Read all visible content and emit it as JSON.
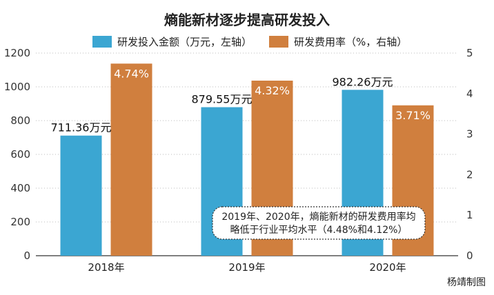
{
  "chart_data": {
    "type": "bar",
    "title": "熵能新材逐步提高研发投入",
    "categories": [
      "2018年",
      "2019年",
      "2020年"
    ],
    "series": [
      {
        "name": "研发投入金额（万元，左轴）",
        "axis": "left",
        "color": "#3ba6d2",
        "values": [
          711.36,
          879.55,
          982.26
        ],
        "labels": [
          "711.36万元",
          "879.55万元",
          "982.26万元"
        ]
      },
      {
        "name": "研发费用率（%，右轴）",
        "axis": "right",
        "color": "#d07f3e",
        "values": [
          4.74,
          4.32,
          3.71
        ],
        "labels": [
          "4.74%",
          "4.32%",
          "3.71%"
        ]
      }
    ],
    "y_left": {
      "min": 0,
      "max": 1200,
      "ticks": [
        "0",
        "200",
        "400",
        "600",
        "800",
        "1000",
        "1200"
      ]
    },
    "y_right": {
      "min": 0,
      "max": 5,
      "ticks": [
        "0",
        "1",
        "2",
        "3",
        "4",
        "5"
      ]
    },
    "grid": true,
    "legend_position": "top",
    "annotation": [
      "2019年、2020年，熵能新材的研发费用率均",
      "略低于行业平均水平（4.48%和4.12%）"
    ],
    "credit": "杨靖制图"
  }
}
